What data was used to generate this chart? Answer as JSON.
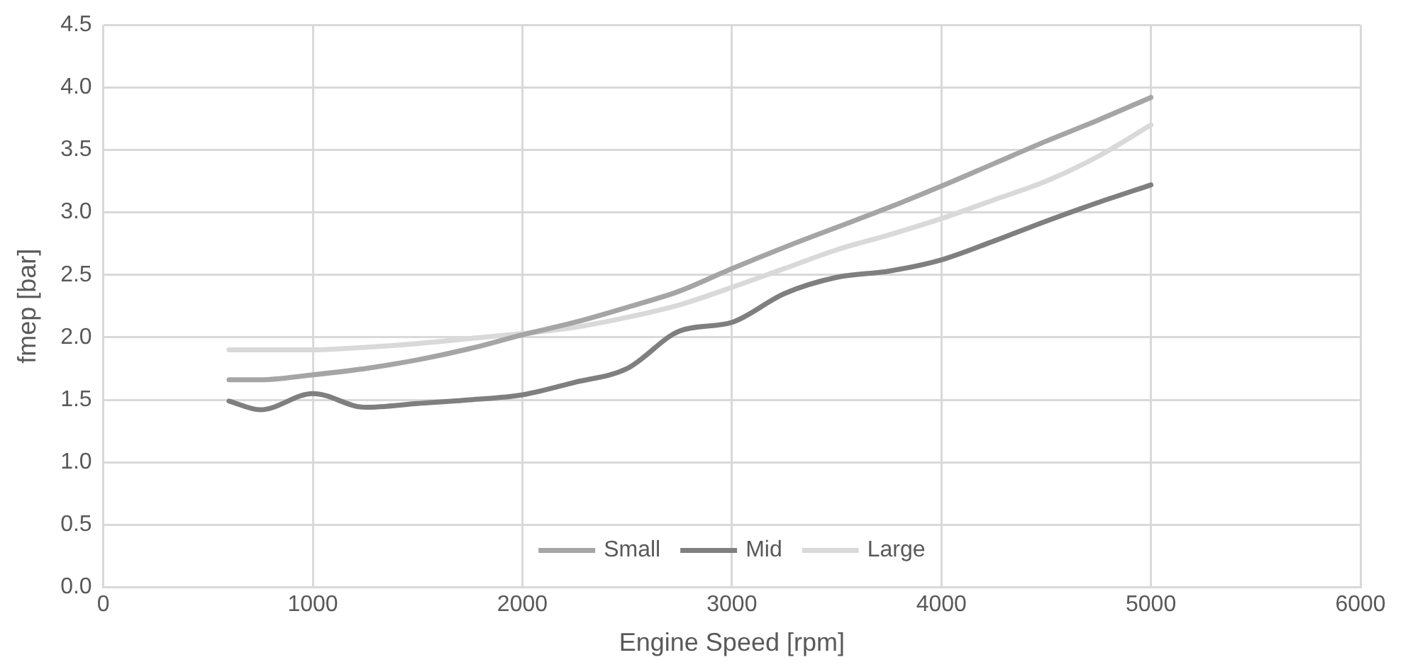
{
  "chart_data": {
    "type": "line",
    "xlabel": "Engine Speed [rpm]",
    "ylabel": "fmep [bar]",
    "x": [
      600,
      750,
      1000,
      1250,
      1500,
      1750,
      2000,
      2250,
      2500,
      2750,
      3000,
      3250,
      3500,
      3750,
      4000,
      4250,
      4500,
      4750,
      5000
    ],
    "series": [
      {
        "name": "Small",
        "color": "#a5a5a5",
        "values": [
          1.66,
          1.66,
          1.7,
          1.75,
          1.82,
          1.91,
          2.02,
          2.12,
          2.24,
          2.37,
          2.55,
          2.72,
          2.88,
          3.04,
          3.21,
          3.39,
          3.57,
          3.74,
          3.92
        ]
      },
      {
        "name": "Mid",
        "color": "#7f7f7f",
        "values": [
          1.49,
          1.42,
          1.55,
          1.44,
          1.47,
          1.5,
          1.54,
          1.64,
          1.75,
          2.05,
          2.12,
          2.35,
          2.48,
          2.53,
          2.62,
          2.77,
          2.93,
          3.08,
          3.22
        ]
      },
      {
        "name": "Large",
        "color": "#d9d9d9",
        "values": [
          1.9,
          1.9,
          1.9,
          1.92,
          1.95,
          1.99,
          2.03,
          2.08,
          2.16,
          2.26,
          2.4,
          2.55,
          2.7,
          2.82,
          2.95,
          3.1,
          3.25,
          3.45,
          3.7
        ]
      }
    ],
    "xlim": [
      0,
      6000
    ],
    "xticks": [
      0,
      1000,
      2000,
      3000,
      4000,
      5000,
      6000
    ],
    "ylim": [
      0,
      4.5
    ],
    "yticks": [
      {
        "value": 0,
        "label": "0.0"
      },
      {
        "value": 0.5,
        "label": "0.5"
      },
      {
        "value": 1,
        "label": "1.0"
      },
      {
        "value": 1.5,
        "label": "1.5"
      },
      {
        "value": 2,
        "label": "2.0"
      },
      {
        "value": 2.5,
        "label": "2.5"
      },
      {
        "value": 3,
        "label": "3.0"
      },
      {
        "value": 3.5,
        "label": "3.5"
      },
      {
        "value": 4,
        "label": "4.0"
      },
      {
        "value": 4.5,
        "label": "4.5"
      }
    ],
    "grid": true,
    "legend": "bottom",
    "marker": "none",
    "line_style": "solid"
  }
}
